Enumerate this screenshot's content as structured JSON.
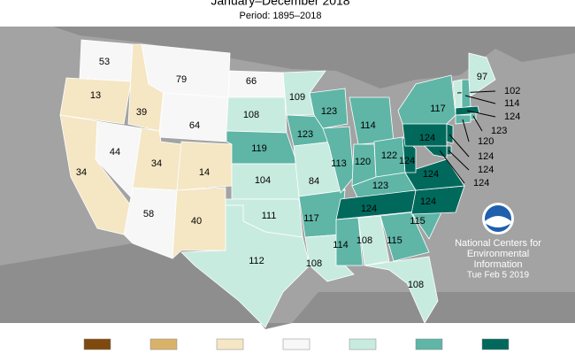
{
  "header": {
    "title": "January–December 2018",
    "subtitle": "Period: 1895–2018"
  },
  "map": {
    "background": "#a3a3a3",
    "land": "#8e8e8e",
    "states": [
      {
        "value": 53,
        "color": "#f7f7f7"
      },
      {
        "value": 13,
        "color": "#f5e6c4"
      },
      {
        "value": 34,
        "color": "#f5e6c4"
      },
      {
        "value": 44,
        "color": "#f7f7f7"
      },
      {
        "value": 39,
        "color": "#f5e6c4"
      },
      {
        "value": 79,
        "color": "#f7f7f7"
      },
      {
        "value": 64,
        "color": "#f7f7f7"
      },
      {
        "value": 34,
        "color": "#f5e6c4"
      },
      {
        "value": 14,
        "color": "#f5e6c4"
      },
      {
        "value": 58,
        "color": "#f7f7f7"
      },
      {
        "value": 40,
        "color": "#f5e6c4"
      },
      {
        "value": 66,
        "color": "#f7f7f7"
      },
      {
        "value": 108,
        "color": "#c8ebe0"
      },
      {
        "value": 119,
        "color": "#5fb5a6"
      },
      {
        "value": 104,
        "color": "#c8ebe0"
      },
      {
        "value": 111,
        "color": "#c8ebe0"
      },
      {
        "value": 112,
        "color": "#c8ebe0"
      },
      {
        "value": 109,
        "color": "#c8ebe0"
      },
      {
        "value": 123,
        "color": "#5fb5a6"
      },
      {
        "value": 84,
        "color": "#c8ebe0"
      },
      {
        "value": 117,
        "color": "#5fb5a6"
      },
      {
        "value": 108,
        "color": "#c8ebe0"
      },
      {
        "value": 123,
        "color": "#5fb5a6"
      },
      {
        "value": 113,
        "color": "#5fb5a6"
      },
      {
        "value": 114,
        "color": "#5fb5a6"
      },
      {
        "value": 120,
        "color": "#5fb5a6"
      },
      {
        "value": 122,
        "color": "#5fb5a6"
      },
      {
        "value": 123,
        "color": "#5fb5a6"
      },
      {
        "value": 124,
        "color": "#00695c"
      },
      {
        "value": 114,
        "color": "#5fb5a6"
      },
      {
        "value": 108,
        "color": "#c8ebe0"
      },
      {
        "value": 115,
        "color": "#5fb5a6"
      },
      {
        "value": 108,
        "color": "#c8ebe0"
      },
      {
        "value": 115,
        "color": "#5fb5a6"
      },
      {
        "value": 124,
        "color": "#00695c"
      },
      {
        "value": 124,
        "color": "#00695c"
      },
      {
        "value": 124,
        "color": "#00695c"
      },
      {
        "value": 124,
        "color": "#00695c"
      },
      {
        "value": 117,
        "color": "#5fb5a6"
      },
      {
        "value": 97,
        "color": "#c8ebe0"
      },
      {
        "value": 102,
        "color": "#c8ebe0"
      },
      {
        "value": 114,
        "color": "#5fb5a6"
      },
      {
        "value": 124,
        "color": "#00695c"
      },
      {
        "value": 123,
        "color": "#5fb5a6"
      },
      {
        "value": 120,
        "color": "#5fb5a6"
      },
      {
        "value": 124,
        "color": "#00695c"
      },
      {
        "value": 124,
        "color": "#00695c"
      },
      {
        "value": 124,
        "color": "#00695c"
      }
    ]
  },
  "legend": {
    "colors": [
      "#7f4a0f",
      "#d9b26a",
      "#f5e6c4",
      "#f7f7f7",
      "#c8ebe0",
      "#5fb5a6",
      "#00695c"
    ]
  },
  "credit": {
    "lines": [
      "National Centers for",
      "Environmental",
      "Information"
    ],
    "date": "Tue Feb  5 2019"
  }
}
